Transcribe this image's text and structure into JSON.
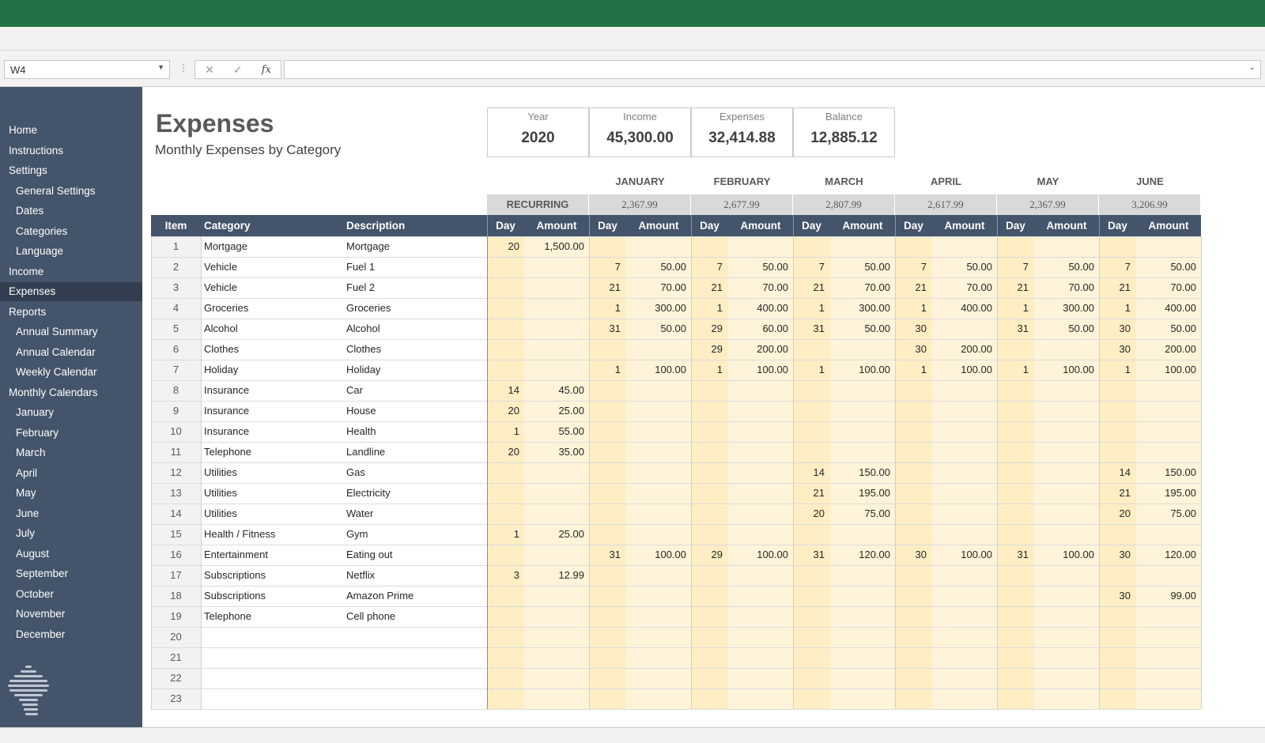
{
  "excel": {
    "name_box": "W4",
    "formula_value": "",
    "icons": [
      "cancel-icon",
      "check-icon",
      "fx-icon"
    ]
  },
  "colors": {
    "titlebar": "#217346",
    "sidebar": "#44546a",
    "sidebar_active": "#333f50",
    "header": "#44546a",
    "day_fill": "#ffeec4",
    "amount_fill": "#fff4d9",
    "total_fill": "#d9d9d9"
  },
  "sidebar": {
    "items": [
      {
        "label": "Home",
        "sub": false
      },
      {
        "label": "Instructions",
        "sub": false
      },
      {
        "label": "Settings",
        "sub": false
      },
      {
        "label": "General Settings",
        "sub": true
      },
      {
        "label": "Dates",
        "sub": true
      },
      {
        "label": "Categories",
        "sub": true
      },
      {
        "label": "Language",
        "sub": true
      },
      {
        "label": "Income",
        "sub": false
      },
      {
        "label": "Expenses",
        "sub": false,
        "active": true
      },
      {
        "label": "Reports",
        "sub": false
      },
      {
        "label": "Annual Summary",
        "sub": true
      },
      {
        "label": "Annual Calendar",
        "sub": true
      },
      {
        "label": "Weekly Calendar",
        "sub": true
      },
      {
        "label": "Monthly Calendars",
        "sub": false
      },
      {
        "label": "January",
        "sub": true
      },
      {
        "label": "February",
        "sub": true
      },
      {
        "label": "March",
        "sub": true
      },
      {
        "label": "April",
        "sub": true
      },
      {
        "label": "May",
        "sub": true
      },
      {
        "label": "June",
        "sub": true
      },
      {
        "label": "July",
        "sub": true
      },
      {
        "label": "August",
        "sub": true
      },
      {
        "label": "September",
        "sub": true
      },
      {
        "label": "October",
        "sub": true
      },
      {
        "label": "November",
        "sub": true
      },
      {
        "label": "December",
        "sub": true
      }
    ]
  },
  "header": {
    "title": "Expenses",
    "subtitle": "Monthly Expenses by Category"
  },
  "summary": [
    {
      "label": "Year",
      "value": "2020"
    },
    {
      "label": "Income",
      "value": "45,300.00"
    },
    {
      "label": "Expenses",
      "value": "32,414.88"
    },
    {
      "label": "Balance",
      "value": "12,885.12"
    }
  ],
  "table": {
    "headers": {
      "item": "Item",
      "category": "Category",
      "description": "Description",
      "day": "Day",
      "amount": "Amount"
    },
    "recurring": {
      "label": "RECURRING"
    },
    "months": [
      {
        "name": "JANUARY",
        "total": "2,367.99"
      },
      {
        "name": "FEBRUARY",
        "total": "2,677.99"
      },
      {
        "name": "MARCH",
        "total": "2,807.99"
      },
      {
        "name": "APRIL",
        "total": "2,617.99"
      },
      {
        "name": "MAY",
        "total": "2,367.99"
      },
      {
        "name": "JUNE",
        "total": "3,206.99"
      }
    ],
    "rows": [
      {
        "item": "1",
        "category": "Mortgage",
        "description": "Mortgage",
        "recurring": {
          "day": "20",
          "amount": "1,500.00"
        },
        "months": [
          {
            "day": "",
            "amount": ""
          },
          {
            "day": "",
            "amount": ""
          },
          {
            "day": "",
            "amount": ""
          },
          {
            "day": "",
            "amount": ""
          },
          {
            "day": "",
            "amount": ""
          },
          {
            "day": "",
            "amount": ""
          }
        ]
      },
      {
        "item": "2",
        "category": "Vehicle",
        "description": "Fuel 1",
        "recurring": {
          "day": "",
          "amount": ""
        },
        "months": [
          {
            "day": "7",
            "amount": "50.00"
          },
          {
            "day": "7",
            "amount": "50.00"
          },
          {
            "day": "7",
            "amount": "50.00"
          },
          {
            "day": "7",
            "amount": "50.00"
          },
          {
            "day": "7",
            "amount": "50.00"
          },
          {
            "day": "7",
            "amount": "50.00"
          }
        ]
      },
      {
        "item": "3",
        "category": "Vehicle",
        "description": "Fuel 2",
        "recurring": {
          "day": "",
          "amount": ""
        },
        "months": [
          {
            "day": "21",
            "amount": "70.00"
          },
          {
            "day": "21",
            "amount": "70.00"
          },
          {
            "day": "21",
            "amount": "70.00"
          },
          {
            "day": "21",
            "amount": "70.00"
          },
          {
            "day": "21",
            "amount": "70.00"
          },
          {
            "day": "21",
            "amount": "70.00"
          }
        ]
      },
      {
        "item": "4",
        "category": "Groceries",
        "description": "Groceries",
        "recurring": {
          "day": "",
          "amount": ""
        },
        "months": [
          {
            "day": "1",
            "amount": "300.00"
          },
          {
            "day": "1",
            "amount": "400.00"
          },
          {
            "day": "1",
            "amount": "300.00"
          },
          {
            "day": "1",
            "amount": "400.00"
          },
          {
            "day": "1",
            "amount": "300.00"
          },
          {
            "day": "1",
            "amount": "400.00"
          }
        ]
      },
      {
        "item": "5",
        "category": "Alcohol",
        "description": "Alcohol",
        "recurring": {
          "day": "",
          "amount": ""
        },
        "months": [
          {
            "day": "31",
            "amount": "50.00"
          },
          {
            "day": "29",
            "amount": "60.00"
          },
          {
            "day": "31",
            "amount": "50.00"
          },
          {
            "day": "30",
            "amount": ""
          },
          {
            "day": "31",
            "amount": "50.00"
          },
          {
            "day": "30",
            "amount": "50.00"
          }
        ]
      },
      {
        "item": "6",
        "category": "Clothes",
        "description": "Clothes",
        "recurring": {
          "day": "",
          "amount": ""
        },
        "months": [
          {
            "day": "",
            "amount": ""
          },
          {
            "day": "29",
            "amount": "200.00"
          },
          {
            "day": "",
            "amount": ""
          },
          {
            "day": "30",
            "amount": "200.00"
          },
          {
            "day": "",
            "amount": ""
          },
          {
            "day": "30",
            "amount": "200.00"
          }
        ]
      },
      {
        "item": "7",
        "category": "Holiday",
        "description": "Holiday",
        "recurring": {
          "day": "",
          "amount": ""
        },
        "months": [
          {
            "day": "1",
            "amount": "100.00"
          },
          {
            "day": "1",
            "amount": "100.00"
          },
          {
            "day": "1",
            "amount": "100.00"
          },
          {
            "day": "1",
            "amount": "100.00"
          },
          {
            "day": "1",
            "amount": "100.00"
          },
          {
            "day": "1",
            "amount": "100.00"
          }
        ]
      },
      {
        "item": "8",
        "category": "Insurance",
        "description": "Car",
        "recurring": {
          "day": "14",
          "amount": "45.00"
        },
        "months": [
          {
            "day": "",
            "amount": ""
          },
          {
            "day": "",
            "amount": ""
          },
          {
            "day": "",
            "amount": ""
          },
          {
            "day": "",
            "amount": ""
          },
          {
            "day": "",
            "amount": ""
          },
          {
            "day": "",
            "amount": ""
          }
        ]
      },
      {
        "item": "9",
        "category": "Insurance",
        "description": "House",
        "recurring": {
          "day": "20",
          "amount": "25.00"
        },
        "months": [
          {
            "day": "",
            "amount": ""
          },
          {
            "day": "",
            "amount": ""
          },
          {
            "day": "",
            "amount": ""
          },
          {
            "day": "",
            "amount": ""
          },
          {
            "day": "",
            "amount": ""
          },
          {
            "day": "",
            "amount": ""
          }
        ]
      },
      {
        "item": "10",
        "category": "Insurance",
        "description": "Health",
        "recurring": {
          "day": "1",
          "amount": "55.00"
        },
        "months": [
          {
            "day": "",
            "amount": ""
          },
          {
            "day": "",
            "amount": ""
          },
          {
            "day": "",
            "amount": ""
          },
          {
            "day": "",
            "amount": ""
          },
          {
            "day": "",
            "amount": ""
          },
          {
            "day": "",
            "amount": ""
          }
        ]
      },
      {
        "item": "11",
        "category": "Telephone",
        "description": "Landline",
        "recurring": {
          "day": "20",
          "amount": "35.00"
        },
        "months": [
          {
            "day": "",
            "amount": ""
          },
          {
            "day": "",
            "amount": ""
          },
          {
            "day": "",
            "amount": ""
          },
          {
            "day": "",
            "amount": ""
          },
          {
            "day": "",
            "amount": ""
          },
          {
            "day": "",
            "amount": ""
          }
        ]
      },
      {
        "item": "12",
        "category": "Utilities",
        "description": "Gas",
        "recurring": {
          "day": "",
          "amount": ""
        },
        "months": [
          {
            "day": "",
            "amount": ""
          },
          {
            "day": "",
            "amount": ""
          },
          {
            "day": "14",
            "amount": "150.00"
          },
          {
            "day": "",
            "amount": ""
          },
          {
            "day": "",
            "amount": ""
          },
          {
            "day": "14",
            "amount": "150.00"
          }
        ]
      },
      {
        "item": "13",
        "category": "Utilities",
        "description": "Electricity",
        "recurring": {
          "day": "",
          "amount": ""
        },
        "months": [
          {
            "day": "",
            "amount": ""
          },
          {
            "day": "",
            "amount": ""
          },
          {
            "day": "21",
            "amount": "195.00"
          },
          {
            "day": "",
            "amount": ""
          },
          {
            "day": "",
            "amount": ""
          },
          {
            "day": "21",
            "amount": "195.00"
          }
        ]
      },
      {
        "item": "14",
        "category": "Utilities",
        "description": "Water",
        "recurring": {
          "day": "",
          "amount": ""
        },
        "months": [
          {
            "day": "",
            "amount": ""
          },
          {
            "day": "",
            "amount": ""
          },
          {
            "day": "20",
            "amount": "75.00"
          },
          {
            "day": "",
            "amount": ""
          },
          {
            "day": "",
            "amount": ""
          },
          {
            "day": "20",
            "amount": "75.00"
          }
        ]
      },
      {
        "item": "15",
        "category": "Health / Fitness",
        "description": "Gym",
        "recurring": {
          "day": "1",
          "amount": "25.00"
        },
        "months": [
          {
            "day": "",
            "amount": ""
          },
          {
            "day": "",
            "amount": ""
          },
          {
            "day": "",
            "amount": ""
          },
          {
            "day": "",
            "amount": ""
          },
          {
            "day": "",
            "amount": ""
          },
          {
            "day": "",
            "amount": ""
          }
        ]
      },
      {
        "item": "16",
        "category": "Entertainment",
        "description": "Eating out",
        "recurring": {
          "day": "",
          "amount": ""
        },
        "months": [
          {
            "day": "31",
            "amount": "100.00"
          },
          {
            "day": "29",
            "amount": "100.00"
          },
          {
            "day": "31",
            "amount": "120.00"
          },
          {
            "day": "30",
            "amount": "100.00"
          },
          {
            "day": "31",
            "amount": "100.00"
          },
          {
            "day": "30",
            "amount": "120.00"
          }
        ]
      },
      {
        "item": "17",
        "category": "Subscriptions",
        "description": "Netflix",
        "recurring": {
          "day": "3",
          "amount": "12.99"
        },
        "months": [
          {
            "day": "",
            "amount": ""
          },
          {
            "day": "",
            "amount": ""
          },
          {
            "day": "",
            "amount": ""
          },
          {
            "day": "",
            "amount": ""
          },
          {
            "day": "",
            "amount": ""
          },
          {
            "day": "",
            "amount": ""
          }
        ]
      },
      {
        "item": "18",
        "category": "Subscriptions",
        "description": "Amazon Prime",
        "recurring": {
          "day": "",
          "amount": ""
        },
        "months": [
          {
            "day": "",
            "amount": ""
          },
          {
            "day": "",
            "amount": ""
          },
          {
            "day": "",
            "amount": ""
          },
          {
            "day": "",
            "amount": ""
          },
          {
            "day": "",
            "amount": ""
          },
          {
            "day": "30",
            "amount": "99.00"
          }
        ]
      },
      {
        "item": "19",
        "category": "Telephone",
        "description": "Cell phone",
        "recurring": {
          "day": "",
          "amount": ""
        },
        "months": [
          {
            "day": "",
            "amount": ""
          },
          {
            "day": "",
            "amount": ""
          },
          {
            "day": "",
            "amount": ""
          },
          {
            "day": "",
            "amount": ""
          },
          {
            "day": "",
            "amount": ""
          },
          {
            "day": "",
            "amount": ""
          }
        ]
      },
      {
        "item": "20",
        "category": "",
        "description": "",
        "recurring": {
          "day": "",
          "amount": ""
        },
        "months": [
          {
            "day": "",
            "amount": ""
          },
          {
            "day": "",
            "amount": ""
          },
          {
            "day": "",
            "amount": ""
          },
          {
            "day": "",
            "amount": ""
          },
          {
            "day": "",
            "amount": ""
          },
          {
            "day": "",
            "amount": ""
          }
        ]
      },
      {
        "item": "21",
        "category": "",
        "description": "",
        "recurring": {
          "day": "",
          "amount": ""
        },
        "months": [
          {
            "day": "",
            "amount": ""
          },
          {
            "day": "",
            "amount": ""
          },
          {
            "day": "",
            "amount": ""
          },
          {
            "day": "",
            "amount": ""
          },
          {
            "day": "",
            "amount": ""
          },
          {
            "day": "",
            "amount": ""
          }
        ]
      },
      {
        "item": "22",
        "category": "",
        "description": "",
        "recurring": {
          "day": "",
          "amount": ""
        },
        "months": [
          {
            "day": "",
            "amount": ""
          },
          {
            "day": "",
            "amount": ""
          },
          {
            "day": "",
            "amount": ""
          },
          {
            "day": "",
            "amount": ""
          },
          {
            "day": "",
            "amount": ""
          },
          {
            "day": "",
            "amount": ""
          }
        ]
      },
      {
        "item": "23",
        "category": "",
        "description": "",
        "recurring": {
          "day": "",
          "amount": ""
        },
        "months": [
          {
            "day": "",
            "amount": ""
          },
          {
            "day": "",
            "amount": ""
          },
          {
            "day": "",
            "amount": ""
          },
          {
            "day": "",
            "amount": ""
          },
          {
            "day": "",
            "amount": ""
          },
          {
            "day": "",
            "amount": ""
          }
        ]
      }
    ]
  }
}
